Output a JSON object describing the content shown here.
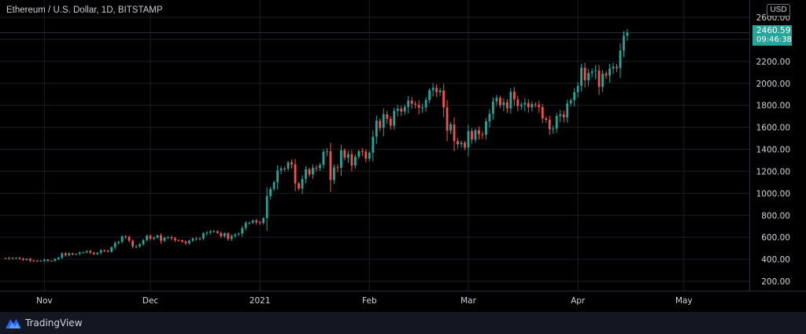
{
  "header": {
    "title": "Ethereum / U.S. Dollar, 1D, BITSTAMP",
    "currency": "USD"
  },
  "price_label": {
    "price": "2460.59",
    "countdown": "09:46:38"
  },
  "footer": {
    "brand": "TradingView"
  },
  "colors": {
    "background": "#000000",
    "up": "#26a69a",
    "down": "#ef5350",
    "grid": "#1b1e26",
    "axis_text": "#d1d4dc",
    "price_line": "#2a2e39"
  },
  "chart_data": {
    "type": "candlestick",
    "title": "Ethereum / U.S. Dollar, 1D, BITSTAMP",
    "ylim": [
      100,
      2650
    ],
    "y_ticks": [
      "200.00",
      "400.00",
      "600.00",
      "800.00",
      "1000.00",
      "1200.00",
      "1400.00",
      "1600.00",
      "1800.00",
      "2000.00",
      "2200.00",
      "2400.00",
      "2600.00"
    ],
    "x_ticks": [
      "Nov",
      "Dec",
      "2021",
      "Feb",
      "Mar",
      "Apr",
      "May"
    ],
    "x_tick_dates": [
      "2020-11-01",
      "2020-12-01",
      "2021-01-01",
      "2021-02-01",
      "2021-03-01",
      "2021-04-01",
      "2021-05-01"
    ],
    "x_range": [
      "2020-10-21",
      "2021-05-23"
    ],
    "last_price": 2460.59,
    "candles": [
      {
        "date": "2020-10-21",
        "close": 407
      },
      {
        "date": "2020-10-22",
        "close": 412
      },
      {
        "date": "2020-10-23",
        "close": 409
      },
      {
        "date": "2020-10-24",
        "close": 413
      },
      {
        "date": "2020-10-25",
        "close": 406
      },
      {
        "date": "2020-10-26",
        "close": 394
      },
      {
        "date": "2020-10-27",
        "close": 404
      },
      {
        "date": "2020-10-28",
        "close": 388
      },
      {
        "date": "2020-10-29",
        "close": 386
      },
      {
        "date": "2020-10-30",
        "close": 384
      },
      {
        "date": "2020-10-31",
        "close": 386
      },
      {
        "date": "2020-11-01",
        "close": 396
      },
      {
        "date": "2020-11-02",
        "close": 384
      },
      {
        "date": "2020-11-03",
        "close": 387
      },
      {
        "date": "2020-11-04",
        "close": 402
      },
      {
        "date": "2020-11-05",
        "close": 414
      },
      {
        "date": "2020-11-06",
        "close": 454
      },
      {
        "date": "2020-11-07",
        "close": 437
      },
      {
        "date": "2020-11-08",
        "close": 453
      },
      {
        "date": "2020-11-09",
        "close": 444
      },
      {
        "date": "2020-11-10",
        "close": 449
      },
      {
        "date": "2020-11-11",
        "close": 462
      },
      {
        "date": "2020-11-12",
        "close": 462
      },
      {
        "date": "2020-11-13",
        "close": 475
      },
      {
        "date": "2020-11-14",
        "close": 460
      },
      {
        "date": "2020-11-15",
        "close": 447
      },
      {
        "date": "2020-11-16",
        "close": 459
      },
      {
        "date": "2020-11-17",
        "close": 481
      },
      {
        "date": "2020-11-18",
        "close": 479
      },
      {
        "date": "2020-11-19",
        "close": 470
      },
      {
        "date": "2020-11-20",
        "close": 509
      },
      {
        "date": "2020-11-21",
        "close": 548
      },
      {
        "date": "2020-11-22",
        "close": 558
      },
      {
        "date": "2020-11-23",
        "close": 608
      },
      {
        "date": "2020-11-24",
        "close": 603
      },
      {
        "date": "2020-11-25",
        "close": 568
      },
      {
        "date": "2020-11-26",
        "close": 516
      },
      {
        "date": "2020-11-27",
        "close": 518
      },
      {
        "date": "2020-11-28",
        "close": 537
      },
      {
        "date": "2020-11-29",
        "close": 574
      },
      {
        "date": "2020-11-30",
        "close": 614
      },
      {
        "date": "2020-12-01",
        "close": 587
      },
      {
        "date": "2020-12-02",
        "close": 597
      },
      {
        "date": "2020-12-03",
        "close": 616
      },
      {
        "date": "2020-12-04",
        "close": 568
      },
      {
        "date": "2020-12-05",
        "close": 595
      },
      {
        "date": "2020-12-06",
        "close": 601
      },
      {
        "date": "2020-12-07",
        "close": 591
      },
      {
        "date": "2020-12-08",
        "close": 574
      },
      {
        "date": "2020-12-09",
        "close": 573
      },
      {
        "date": "2020-12-10",
        "close": 560
      },
      {
        "date": "2020-12-11",
        "close": 545
      },
      {
        "date": "2020-12-12",
        "close": 568
      },
      {
        "date": "2020-12-13",
        "close": 589
      },
      {
        "date": "2020-12-14",
        "close": 585
      },
      {
        "date": "2020-12-15",
        "close": 589
      },
      {
        "date": "2020-12-16",
        "close": 636
      },
      {
        "date": "2020-12-17",
        "close": 642
      },
      {
        "date": "2020-12-18",
        "close": 654
      },
      {
        "date": "2020-12-19",
        "close": 655
      },
      {
        "date": "2020-12-20",
        "close": 639
      },
      {
        "date": "2020-12-21",
        "close": 609
      },
      {
        "date": "2020-12-22",
        "close": 635
      },
      {
        "date": "2020-12-23",
        "close": 584
      },
      {
        "date": "2020-12-24",
        "close": 612
      },
      {
        "date": "2020-12-25",
        "close": 625
      },
      {
        "date": "2020-12-26",
        "close": 634
      },
      {
        "date": "2020-12-27",
        "close": 684
      },
      {
        "date": "2020-12-28",
        "close": 730
      },
      {
        "date": "2020-12-29",
        "close": 732
      },
      {
        "date": "2020-12-30",
        "close": 752
      },
      {
        "date": "2020-12-31",
        "close": 737
      },
      {
        "date": "2021-01-01",
        "close": 730
      },
      {
        "date": "2021-01-02",
        "close": 774
      },
      {
        "date": "2021-01-03",
        "close": 975
      },
      {
        "date": "2021-01-04",
        "close": 1040
      },
      {
        "date": "2021-01-05",
        "close": 1100
      },
      {
        "date": "2021-01-06",
        "close": 1208
      },
      {
        "date": "2021-01-07",
        "close": 1225
      },
      {
        "date": "2021-01-08",
        "close": 1224
      },
      {
        "date": "2021-01-09",
        "close": 1281
      },
      {
        "date": "2021-01-10",
        "close": 1262
      },
      {
        "date": "2021-01-11",
        "close": 1090
      },
      {
        "date": "2021-01-12",
        "close": 1043
      },
      {
        "date": "2021-01-13",
        "close": 1130
      },
      {
        "date": "2021-01-14",
        "close": 1218
      },
      {
        "date": "2021-01-15",
        "close": 1171
      },
      {
        "date": "2021-01-16",
        "close": 1233
      },
      {
        "date": "2021-01-17",
        "close": 1230
      },
      {
        "date": "2021-01-18",
        "close": 1257
      },
      {
        "date": "2021-01-19",
        "close": 1377
      },
      {
        "date": "2021-01-20",
        "close": 1382
      },
      {
        "date": "2021-01-21",
        "close": 1121
      },
      {
        "date": "2021-01-22",
        "close": 1236
      },
      {
        "date": "2021-01-23",
        "close": 1231
      },
      {
        "date": "2021-01-24",
        "close": 1391
      },
      {
        "date": "2021-01-25",
        "close": 1324
      },
      {
        "date": "2021-01-26",
        "close": 1356
      },
      {
        "date": "2021-01-27",
        "close": 1252
      },
      {
        "date": "2021-01-28",
        "close": 1332
      },
      {
        "date": "2021-01-29",
        "close": 1382
      },
      {
        "date": "2021-01-30",
        "close": 1378
      },
      {
        "date": "2021-01-31",
        "close": 1314
      },
      {
        "date": "2021-02-01",
        "close": 1369
      },
      {
        "date": "2021-02-02",
        "close": 1515
      },
      {
        "date": "2021-02-03",
        "close": 1660
      },
      {
        "date": "2021-02-04",
        "close": 1594
      },
      {
        "date": "2021-02-05",
        "close": 1718
      },
      {
        "date": "2021-02-06",
        "close": 1677
      },
      {
        "date": "2021-02-07",
        "close": 1614
      },
      {
        "date": "2021-02-08",
        "close": 1750
      },
      {
        "date": "2021-02-09",
        "close": 1769
      },
      {
        "date": "2021-02-10",
        "close": 1743
      },
      {
        "date": "2021-02-11",
        "close": 1785
      },
      {
        "date": "2021-02-12",
        "close": 1843
      },
      {
        "date": "2021-02-13",
        "close": 1814
      },
      {
        "date": "2021-02-14",
        "close": 1805
      },
      {
        "date": "2021-02-15",
        "close": 1779
      },
      {
        "date": "2021-02-16",
        "close": 1781
      },
      {
        "date": "2021-02-17",
        "close": 1848
      },
      {
        "date": "2021-02-18",
        "close": 1937
      },
      {
        "date": "2021-02-19",
        "close": 1959
      },
      {
        "date": "2021-02-20",
        "close": 1919
      },
      {
        "date": "2021-02-21",
        "close": 1935
      },
      {
        "date": "2021-02-22",
        "close": 1781
      },
      {
        "date": "2021-02-23",
        "close": 1570
      },
      {
        "date": "2021-02-24",
        "close": 1626
      },
      {
        "date": "2021-02-25",
        "close": 1475
      },
      {
        "date": "2021-02-26",
        "close": 1446
      },
      {
        "date": "2021-02-27",
        "close": 1459
      },
      {
        "date": "2021-02-28",
        "close": 1416
      },
      {
        "date": "2021-03-01",
        "close": 1566
      },
      {
        "date": "2021-03-02",
        "close": 1488
      },
      {
        "date": "2021-03-03",
        "close": 1573
      },
      {
        "date": "2021-03-04",
        "close": 1537
      },
      {
        "date": "2021-03-05",
        "close": 1532
      },
      {
        "date": "2021-03-06",
        "close": 1654
      },
      {
        "date": "2021-03-07",
        "close": 1723
      },
      {
        "date": "2021-03-08",
        "close": 1834
      },
      {
        "date": "2021-03-09",
        "close": 1868
      },
      {
        "date": "2021-03-10",
        "close": 1800
      },
      {
        "date": "2021-03-11",
        "close": 1826
      },
      {
        "date": "2021-03-12",
        "close": 1771
      },
      {
        "date": "2021-03-13",
        "close": 1924
      },
      {
        "date": "2021-03-14",
        "close": 1854
      },
      {
        "date": "2021-03-15",
        "close": 1792
      },
      {
        "date": "2021-03-16",
        "close": 1806
      },
      {
        "date": "2021-03-17",
        "close": 1822
      },
      {
        "date": "2021-03-18",
        "close": 1782
      },
      {
        "date": "2021-03-19",
        "close": 1810
      },
      {
        "date": "2021-03-20",
        "close": 1806
      },
      {
        "date": "2021-03-21",
        "close": 1783
      },
      {
        "date": "2021-03-22",
        "close": 1681
      },
      {
        "date": "2021-03-23",
        "close": 1669
      },
      {
        "date": "2021-03-24",
        "close": 1582
      },
      {
        "date": "2021-03-25",
        "close": 1588
      },
      {
        "date": "2021-03-26",
        "close": 1702
      },
      {
        "date": "2021-03-27",
        "close": 1718
      },
      {
        "date": "2021-03-28",
        "close": 1690
      },
      {
        "date": "2021-03-29",
        "close": 1817
      },
      {
        "date": "2021-03-30",
        "close": 1846
      },
      {
        "date": "2021-03-31",
        "close": 1919
      },
      {
        "date": "2021-04-01",
        "close": 1977
      },
      {
        "date": "2021-04-02",
        "close": 2142
      },
      {
        "date": "2021-04-03",
        "close": 2028
      },
      {
        "date": "2021-04-04",
        "close": 2093
      },
      {
        "date": "2021-04-05",
        "close": 2108
      },
      {
        "date": "2021-04-06",
        "close": 2116
      },
      {
        "date": "2021-04-07",
        "close": 1967
      },
      {
        "date": "2021-04-08",
        "close": 2089
      },
      {
        "date": "2021-04-09",
        "close": 2071
      },
      {
        "date": "2021-04-10",
        "close": 2134
      },
      {
        "date": "2021-04-11",
        "close": 2151
      },
      {
        "date": "2021-04-12",
        "close": 2138
      },
      {
        "date": "2021-04-13",
        "close": 2299
      },
      {
        "date": "2021-04-14",
        "close": 2432
      },
      {
        "date": "2021-04-15",
        "close": 2460.59
      }
    ]
  }
}
